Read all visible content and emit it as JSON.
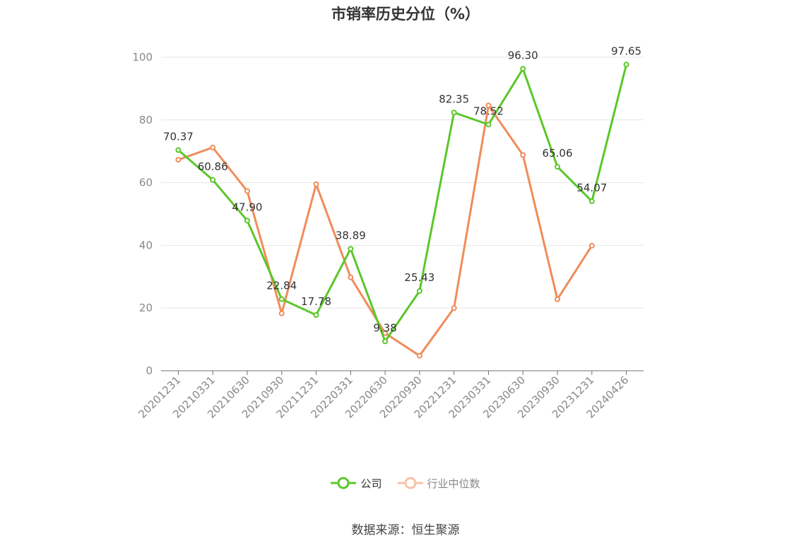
{
  "chart_data": {
    "type": "line",
    "title": "市销率历史分位（%）",
    "categories": [
      "20201231",
      "20210331",
      "20210630",
      "20210930",
      "20211231",
      "20220331",
      "20220630",
      "20220930",
      "20221231",
      "20230331",
      "20230630",
      "20230930",
      "20231231",
      "20240426"
    ],
    "series": [
      {
        "name": "公司",
        "color": "#5bc72a",
        "values": [
          70.37,
          60.86,
          47.9,
          22.84,
          17.78,
          38.89,
          9.38,
          25.43,
          82.35,
          78.52,
          96.3,
          65.06,
          54.07,
          97.65
        ],
        "labels": [
          "70.37",
          "60.86",
          "47.90",
          "22.84",
          "17.78",
          "38.89",
          "9.38",
          "25.43",
          "82.35",
          "78.52",
          "96.30",
          "65.06",
          "54.07",
          "97.65"
        ]
      },
      {
        "name": "行业中位数",
        "color": "#f08c5a",
        "values": [
          67.3,
          71.2,
          57.3,
          18.3,
          59.5,
          29.8,
          12.0,
          4.8,
          20.0,
          84.6,
          68.8,
          22.8,
          39.9,
          null
        ]
      }
    ],
    "ylim": [
      0,
      100
    ],
    "yticks": [
      0,
      20,
      40,
      60,
      80,
      100
    ],
    "grid": true,
    "legend_position": "bottom"
  },
  "source_text": "数据来源：恒生聚源"
}
